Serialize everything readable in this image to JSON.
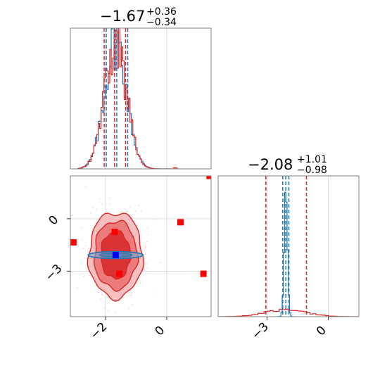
{
  "chart_data": {
    "type": "corner",
    "colors": {
      "red": "#d62728",
      "blue": "#1f77b4",
      "marker_red": "#ff0000",
      "marker_blue": "#0000ff",
      "grid": "#d3d3d3"
    },
    "panels": {
      "hist_param1": {
        "title_value": "−1.67",
        "title_plus": "+0.36",
        "title_minus": "−0.34",
        "xlim": [
          -3.15,
          1.45
        ],
        "quantiles": [
          -2.01,
          -1.67,
          -1.31
        ],
        "mean": -1.67,
        "sigma": 0.36
      },
      "hist_param2": {
        "title_value": "−2.08",
        "title_plus": "+1.01",
        "title_minus": "−0.98",
        "xlim": [
          -5.4,
          1.5
        ],
        "red_quantiles": [
          -3.06,
          -2.08,
          -1.07
        ],
        "blue_quantiles": [
          -2.23,
          -2.08,
          -1.93
        ]
      },
      "scatter": {
        "xlim": [
          -3.15,
          1.45
        ],
        "ylim": [
          -5.6,
          2.45
        ],
        "x_ticks": [
          -2,
          0
        ],
        "y_ticks": [
          0,
          -3
        ],
        "x_tick_labels": [
          "−2",
          "0"
        ],
        "y_tick_labels": [
          "0",
          "−3"
        ],
        "red_contours": [
          {
            "cx": -1.67,
            "cy": -2.08,
            "rx": 0.88,
            "ry": 2.45
          },
          {
            "cx": -1.67,
            "cy": -2.08,
            "rx": 0.7,
            "ry": 1.95
          },
          {
            "cx": -1.67,
            "cy": -2.08,
            "rx": 0.48,
            "ry": 1.35
          }
        ],
        "blue_contour": {
          "cx": -1.67,
          "cy": -2.08,
          "rx": 0.9,
          "ry": 0.2
        },
        "red_markers": [
          {
            "x": -1.7,
            "y": -0.75
          },
          {
            "x": -3.05,
            "y": -1.35
          },
          {
            "x": -1.55,
            "y": -3.15
          },
          {
            "x": 0.45,
            "y": -0.2
          },
          {
            "x": 1.2,
            "y": -3.15
          },
          {
            "x": 1.4,
            "y": 2.45
          }
        ],
        "blue_marker": {
          "x": -1.67,
          "y": -2.08
        }
      },
      "hist_param2_ticks": {
        "ticks": [
          -3,
          0
        ],
        "tick_labels": [
          "−3",
          "0"
        ]
      }
    }
  }
}
